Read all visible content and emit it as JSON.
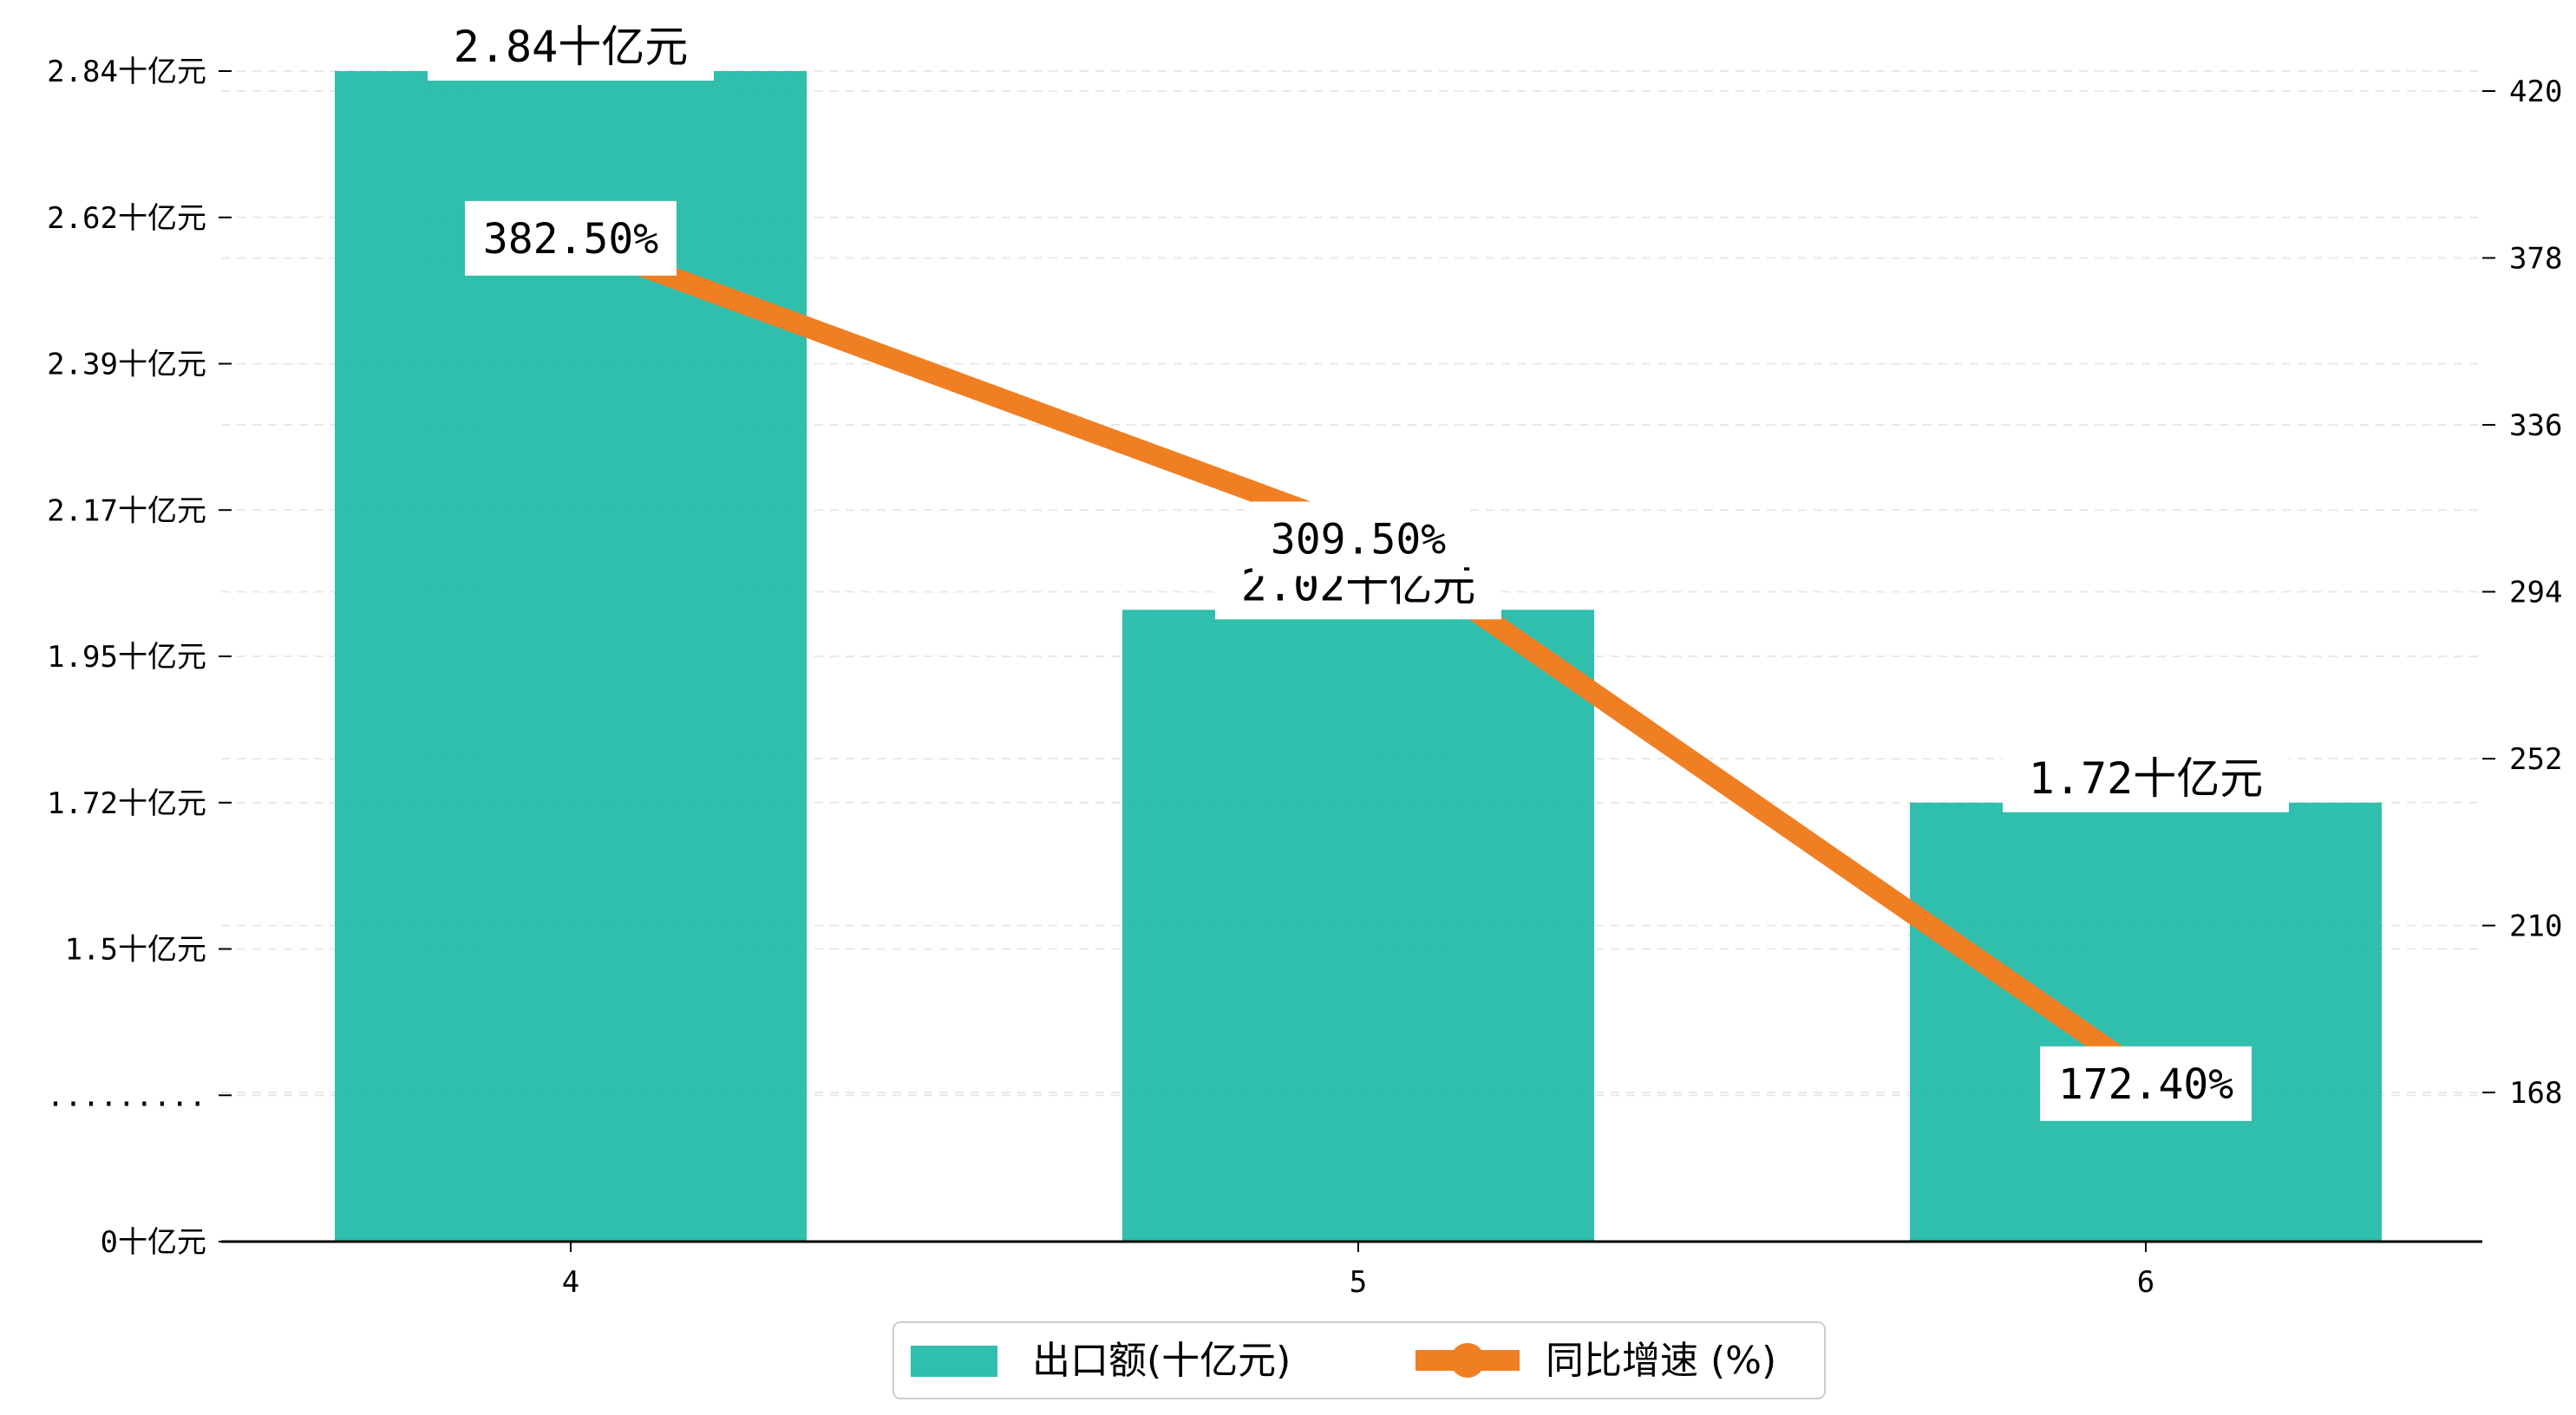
{
  "chart_data": {
    "type": "bar",
    "categories": [
      "4",
      "5",
      "6"
    ],
    "series": [
      {
        "name": "出口额(十亿元)",
        "type": "bar",
        "axis": "left",
        "values": [
          2.84,
          2.02,
          1.72
        ],
        "labels": [
          "2.84十亿元",
          "2.02十亿元",
          "1.72十亿元"
        ],
        "color": "#1EB8A6"
      },
      {
        "name": "同比增速 (%)",
        "type": "line",
        "axis": "right",
        "values": [
          382.5,
          309.5,
          172.4
        ],
        "labels": [
          "382.50%",
          "309.50%",
          "172.40%"
        ],
        "color": "#F07F24"
      }
    ],
    "left_axis": {
      "ticks": [
        {
          "pos": 0,
          "label": "0十亿元"
        },
        {
          "pos": 1,
          "label": "........."
        },
        {
          "pos": 2,
          "label": "1.5十亿元"
        },
        {
          "pos": 3,
          "label": "1.72十亿元"
        },
        {
          "pos": 4,
          "label": "1.95十亿元"
        },
        {
          "pos": 5,
          "label": "2.17十亿元"
        },
        {
          "pos": 6,
          "label": "2.39十亿元"
        },
        {
          "pos": 7,
          "label": "2.62十亿元"
        },
        {
          "pos": 8,
          "label": "2.84十亿元"
        }
      ]
    },
    "right_axis": {
      "ticks": [
        168,
        210,
        252,
        294,
        336,
        378,
        420
      ]
    },
    "grid": true,
    "legend_position": "bottom-center",
    "accent": {
      "bar": "#1EB8A6",
      "line": "#F07F24"
    }
  }
}
